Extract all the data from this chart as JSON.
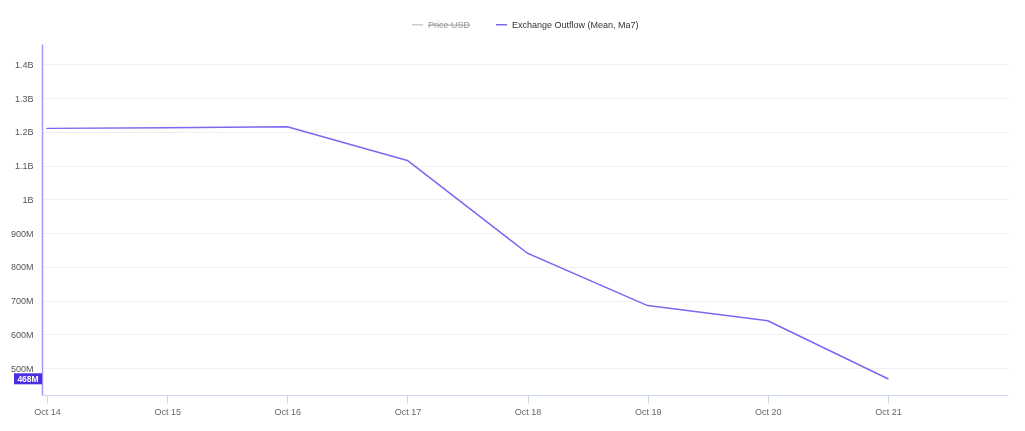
{
  "chart_data": {
    "type": "line",
    "x": [
      "--10-14",
      "--10-15",
      "--10-16",
      "--10-17",
      "--10-18",
      "--10-19",
      "--10-20",
      "--10-21"
    ],
    "series": [
      {
        "name": "Price USD",
        "color": "#cccccc",
        "values": [
          null,
          null,
          null,
          null,
          null,
          null,
          null,
          null
        ]
      },
      {
        "name": "Exchange Outflow (Mean, Ma7)",
        "color": "#7b68f0",
        "values": [
          1210000000,
          1212000000,
          1215000000,
          1115000000,
          840000000,
          685000000,
          640000000,
          468000000
        ]
      }
    ],
    "xlim": [
      "--10-13T23:00",
      "--10-22"
    ],
    "xticks": [
      {
        "value": "--10-14",
        "label": "Oct 14"
      },
      {
        "value": "--10-15",
        "label": "Oct 15"
      },
      {
        "value": "--10-16",
        "label": "Oct 16"
      },
      {
        "value": "--10-17",
        "label": "Oct 17"
      },
      {
        "value": "--10-18",
        "label": "Oct 18"
      },
      {
        "value": "--10-19",
        "label": "Oct 19"
      },
      {
        "value": "--10-20",
        "label": "Oct 20"
      },
      {
        "value": "--10-21",
        "label": "Oct 21"
      }
    ],
    "ylim": [
      420000000,
      1460000000
    ],
    "yticks": [
      {
        "value": 500000000,
        "label": "500M"
      },
      {
        "value": 600000000,
        "label": "600M"
      },
      {
        "value": 700000000,
        "label": "700M"
      },
      {
        "value": 800000000,
        "label": "800M"
      },
      {
        "value": 900000000,
        "label": "900M"
      },
      {
        "value": 1000000000,
        "label": "1B"
      },
      {
        "value": 1100000000,
        "label": "1.1B"
      },
      {
        "value": 1200000000,
        "label": "1.2B"
      },
      {
        "value": 1300000000,
        "label": "1.3B"
      },
      {
        "value": 1400000000,
        "label": "1.4B"
      }
    ],
    "grid": "y",
    "legend": "top",
    "line_style": "solid",
    "annotations": [
      {
        "text": "468M",
        "y": 468000000
      }
    ]
  }
}
